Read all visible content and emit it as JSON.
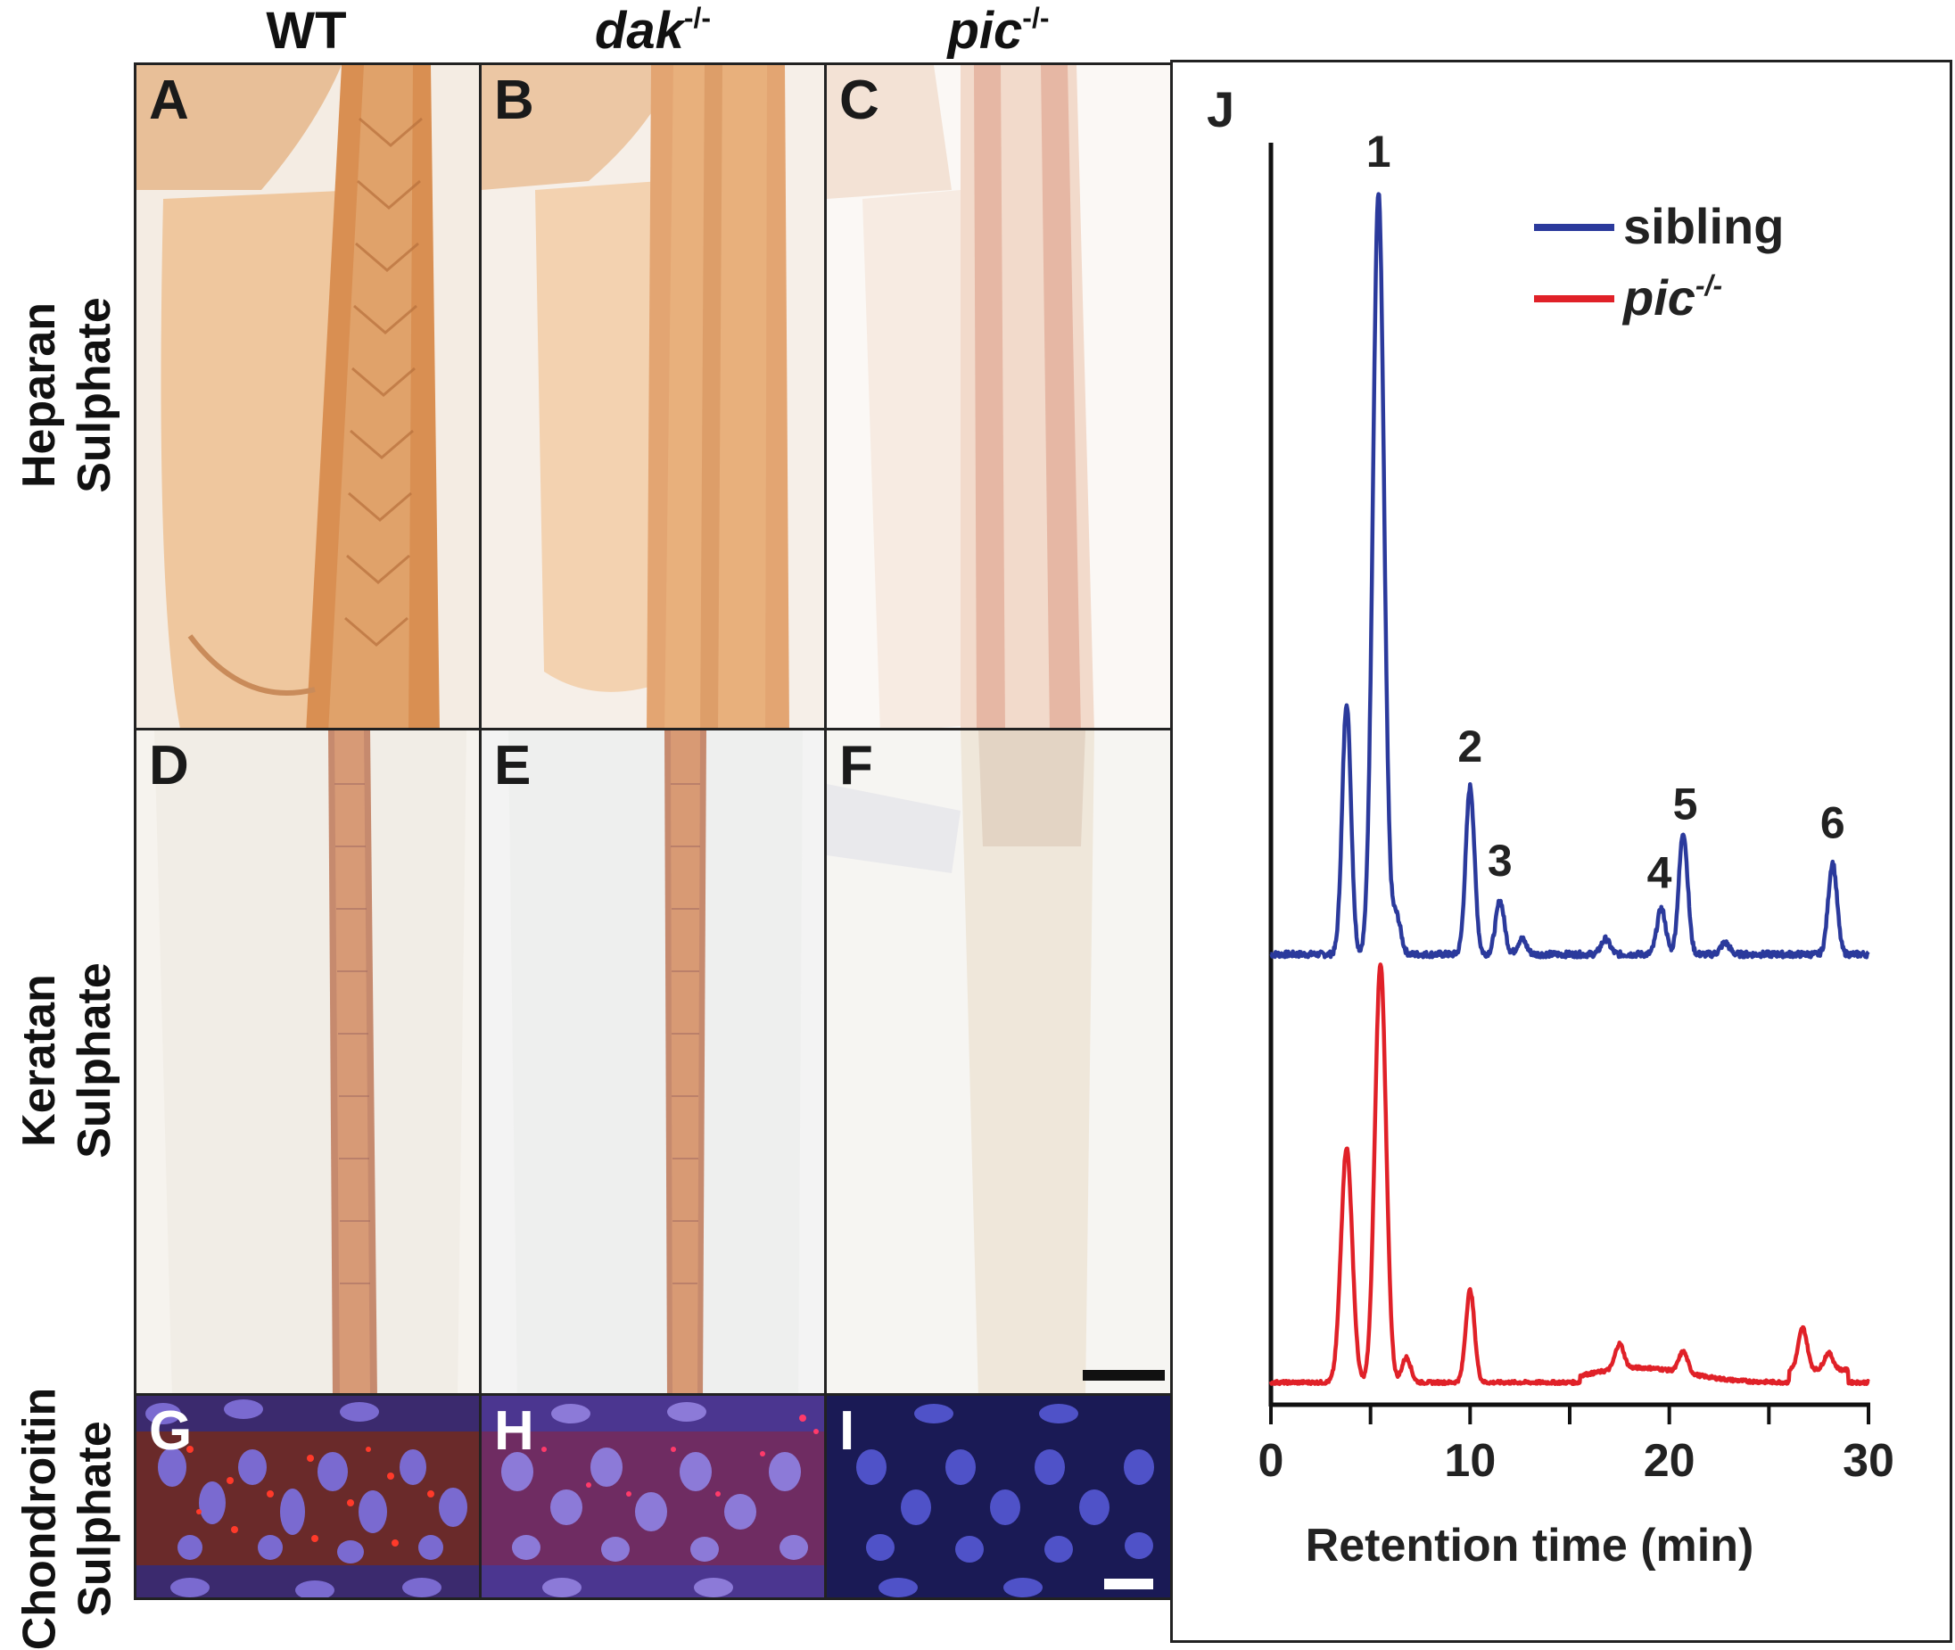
{
  "columns": [
    {
      "label": "WT",
      "italic": false,
      "sup": ""
    },
    {
      "label": "dak",
      "italic": true,
      "sup": "-/-"
    },
    {
      "label": "pic",
      "italic": true,
      "sup": "-/-"
    }
  ],
  "rows": [
    {
      "line1": "Heparan",
      "line2": "Sulphate"
    },
    {
      "line1": "Keratan",
      "line2": "Sulphate"
    },
    {
      "line1": "Chondroitin",
      "line2": "Sulphate"
    }
  ],
  "panels": [
    "A",
    "B",
    "C",
    "D",
    "E",
    "F",
    "G",
    "H",
    "I"
  ],
  "chart_panel_label": "J",
  "chart_data": {
    "type": "line",
    "xlabel": "Retention time (min)",
    "ylabel": "",
    "xlim": [
      0,
      30
    ],
    "xticks": [
      0,
      10,
      20,
      30
    ],
    "xtick_labels": [
      "0",
      "10",
      "20",
      "30"
    ],
    "legend": {
      "position": "top-right"
    },
    "series": [
      {
        "name": "sibling",
        "color": "#2b3a9c",
        "peaks": [
          {
            "x": 3.8,
            "h": 0.33
          },
          {
            "x": 5.4,
            "h": 1.0
          },
          {
            "x": 6.3,
            "h": 0.05
          },
          {
            "x": 10.0,
            "h": 0.22
          },
          {
            "x": 11.5,
            "h": 0.07
          },
          {
            "x": 12.6,
            "h": 0.02
          },
          {
            "x": 16.8,
            "h": 0.02
          },
          {
            "x": 19.6,
            "h": 0.06
          },
          {
            "x": 20.7,
            "h": 0.16
          },
          {
            "x": 22.8,
            "h": 0.015
          },
          {
            "x": 28.2,
            "h": 0.12
          }
        ]
      },
      {
        "name": "pic",
        "name_sup": "-/-",
        "color": "#e02128",
        "peaks": [
          {
            "x": 3.8,
            "h": 0.56
          },
          {
            "x": 5.5,
            "h": 1.0
          },
          {
            "x": 6.8,
            "h": 0.06
          },
          {
            "x": 10.0,
            "h": 0.22
          },
          {
            "x": 17.5,
            "h": 0.06
          },
          {
            "x": 20.7,
            "h": 0.05
          },
          {
            "x": 26.7,
            "h": 0.1
          },
          {
            "x": 28.0,
            "h": 0.04
          }
        ]
      }
    ],
    "peak_labels": [
      {
        "text": "1",
        "x": 5.4
      },
      {
        "text": "2",
        "x": 10.0
      },
      {
        "text": "3",
        "x": 11.5
      },
      {
        "text": "4",
        "x": 19.5
      },
      {
        "text": "5",
        "x": 20.8
      },
      {
        "text": "6",
        "x": 28.2
      }
    ]
  }
}
